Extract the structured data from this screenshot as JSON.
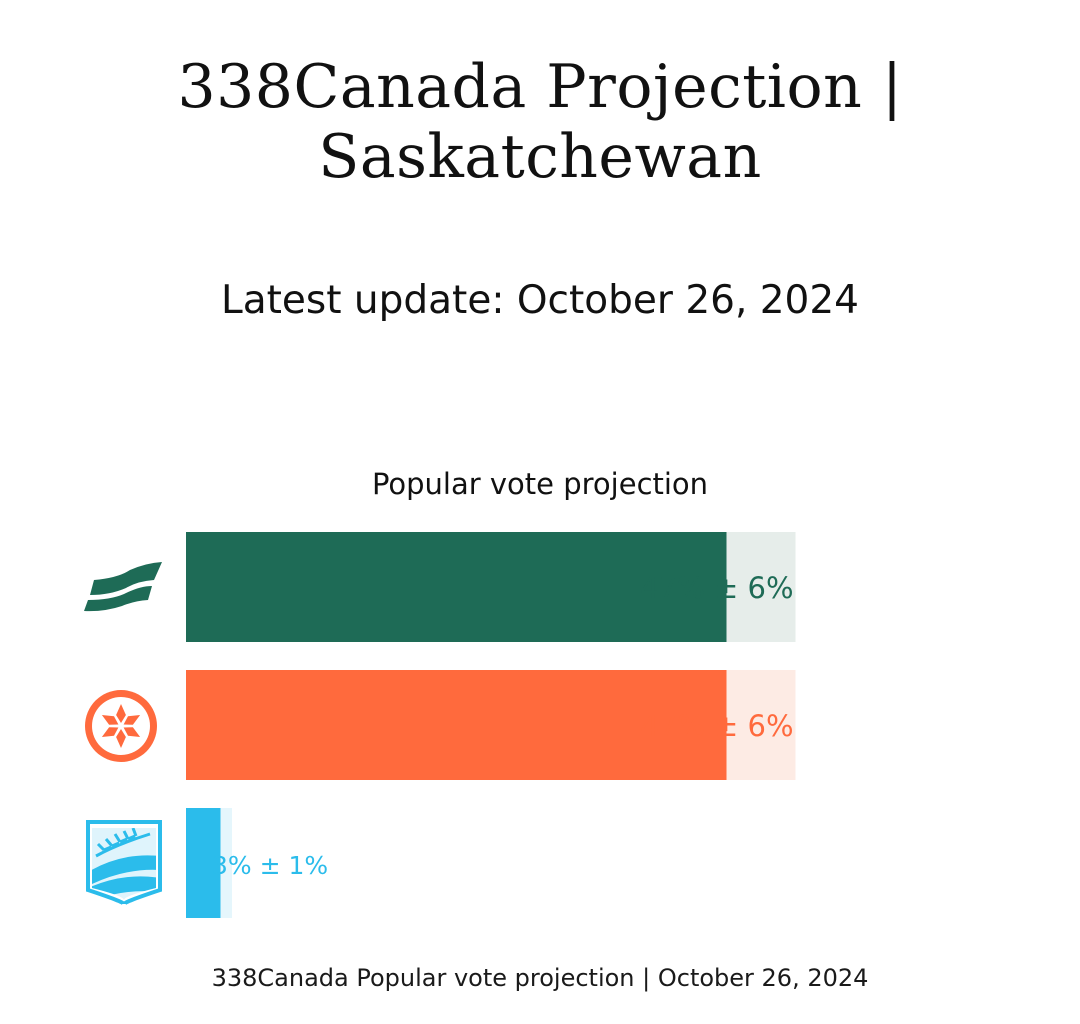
{
  "header": {
    "title_line1": "338Canada Projection |",
    "title_line2": "Saskatchewan",
    "subtitle": "Latest update: October 26, 2024"
  },
  "footer": {
    "caption": "338Canada Popular vote projection | October 26, 2024"
  },
  "chart_data": {
    "type": "bar",
    "orientation": "horizontal",
    "title": "Popular vote projection",
    "xlabel": "",
    "ylabel": "",
    "xlim": [
      0,
      60
    ],
    "grid": false,
    "legend": "none",
    "series": [
      {
        "icon": "saskatchewan-party-logo-icon",
        "value": 47,
        "margin": 6,
        "label": "47% ± 6%",
        "color": "#1e6b56",
        "band_color": "#e6edea"
      },
      {
        "icon": "ndp-logo-icon",
        "value": 47,
        "margin": 6,
        "label": "47% ± 6%",
        "color": "#ff6a3d",
        "band_color": "#fdebe4"
      },
      {
        "icon": "saskatchewan-united-party-logo-icon",
        "value": 3,
        "margin": 1,
        "label": "3% ± 1%",
        "color": "#2bbceb",
        "band_color": "#e5f6fc"
      }
    ]
  }
}
